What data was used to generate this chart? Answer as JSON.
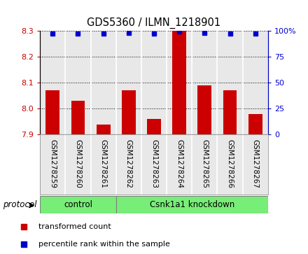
{
  "title": "GDS5360 / ILMN_1218901",
  "samples": [
    "GSM1278259",
    "GSM1278260",
    "GSM1278261",
    "GSM1278262",
    "GSM1278263",
    "GSM1278264",
    "GSM1278265",
    "GSM1278266",
    "GSM1278267"
  ],
  "bar_values": [
    8.07,
    8.03,
    7.94,
    8.07,
    7.96,
    8.3,
    8.09,
    8.07,
    7.98
  ],
  "percentile_values": [
    97,
    97,
    97,
    98,
    97,
    99,
    98,
    97,
    97
  ],
  "bar_color": "#cc0000",
  "dot_color": "#0000cc",
  "ylim_left": [
    7.9,
    8.3
  ],
  "yticks_left": [
    7.9,
    8.0,
    8.1,
    8.2,
    8.3
  ],
  "ylim_right": [
    0,
    100
  ],
  "yticks_right": [
    0,
    25,
    50,
    75,
    100
  ],
  "yticklabels_right": [
    "0",
    "25",
    "50",
    "75",
    "100%"
  ],
  "grid_values": [
    8.0,
    8.1,
    8.2,
    8.3
  ],
  "protocol_label": "protocol",
  "groups": [
    {
      "label": "control",
      "start": 0,
      "end": 3
    },
    {
      "label": "Csnk1a1 knockdown",
      "start": 3,
      "end": 9
    }
  ],
  "group_color": "#77ee77",
  "legend_items": [
    {
      "label": "transformed count",
      "color": "#cc0000"
    },
    {
      "label": "percentile rank within the sample",
      "color": "#0000cc"
    }
  ],
  "bar_width": 0.55,
  "tick_label_color_left": "#cc0000",
  "tick_label_color_right": "#0000cc",
  "plot_bg_color": "#e8e8e8",
  "col_sep_color": "#ffffff"
}
